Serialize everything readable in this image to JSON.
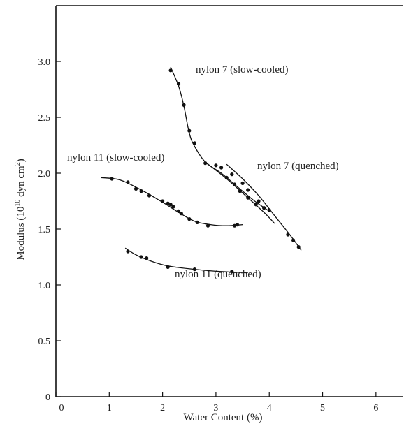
{
  "chart_data": {
    "type": "scatter",
    "xlabel": "Water Content (%)",
    "ylabel": "Modulus (10¹⁰ dyn cm²)",
    "ylabel_parts": {
      "main": "Modulus  (10",
      "exp": "10",
      "unit": " dyn   cm",
      "unit_exp": "2",
      "close": ")"
    },
    "xlim": [
      0,
      6.5
    ],
    "ylim": [
      0,
      3.5
    ],
    "xticks": [
      "0",
      "1",
      "2",
      "3",
      "4",
      "5",
      "6"
    ],
    "yticks": [
      "0",
      "0.5",
      "1.0",
      "1.5",
      "2.0",
      "2.5",
      "3.0"
    ],
    "grid": false,
    "series": [
      {
        "name": "nylon 7 (slow-cooled)",
        "points": [
          [
            2.15,
            2.92
          ],
          [
            2.3,
            2.8
          ],
          [
            2.4,
            2.61
          ],
          [
            2.5,
            2.38
          ],
          [
            2.6,
            2.27
          ],
          [
            2.8,
            2.09
          ],
          [
            3.0,
            2.07
          ],
          [
            3.1,
            2.05
          ],
          [
            3.3,
            1.99
          ],
          [
            3.5,
            1.91
          ],
          [
            3.6,
            1.85
          ],
          [
            3.8,
            1.75
          ],
          [
            4.0,
            1.67
          ]
        ],
        "curve": [
          [
            2.15,
            2.95
          ],
          [
            2.3,
            2.78
          ],
          [
            2.4,
            2.6
          ],
          [
            2.5,
            2.36
          ],
          [
            2.6,
            2.24
          ],
          [
            2.8,
            2.1
          ],
          [
            3.1,
            2.0
          ],
          [
            3.4,
            1.88
          ],
          [
            3.7,
            1.76
          ],
          [
            4.0,
            1.66
          ]
        ]
      },
      {
        "name": "nylon 7 (quenched)",
        "points": [
          [
            3.2,
            1.96
          ],
          [
            3.35,
            1.9
          ],
          [
            3.45,
            1.84
          ],
          [
            3.6,
            1.78
          ],
          [
            3.75,
            1.72
          ],
          [
            3.9,
            1.69
          ],
          [
            4.35,
            1.45
          ],
          [
            4.45,
            1.4
          ],
          [
            4.55,
            1.34
          ]
        ],
        "curve": [
          [
            2.8,
            2.1
          ],
          [
            3.2,
            1.95
          ],
          [
            3.6,
            1.78
          ],
          [
            3.9,
            1.65
          ],
          [
            4.1,
            1.55
          ]
        ],
        "curve2": [
          [
            3.2,
            2.08
          ],
          [
            3.5,
            1.95
          ],
          [
            3.8,
            1.8
          ],
          [
            4.1,
            1.62
          ],
          [
            4.4,
            1.44
          ],
          [
            4.6,
            1.31
          ]
        ]
      },
      {
        "name": "nylon 11 (slow-cooled)",
        "points": [
          [
            1.05,
            1.95
          ],
          [
            1.35,
            1.92
          ],
          [
            1.5,
            1.86
          ],
          [
            1.6,
            1.84
          ],
          [
            1.75,
            1.8
          ],
          [
            2.0,
            1.75
          ],
          [
            2.1,
            1.73
          ],
          [
            2.15,
            1.72
          ],
          [
            2.2,
            1.7
          ],
          [
            2.3,
            1.66
          ],
          [
            2.35,
            1.64
          ],
          [
            2.5,
            1.59
          ],
          [
            2.65,
            1.56
          ],
          [
            2.85,
            1.53
          ],
          [
            3.35,
            1.53
          ],
          [
            3.4,
            1.54
          ]
        ],
        "curve": [
          [
            0.85,
            1.96
          ],
          [
            1.2,
            1.94
          ],
          [
            1.6,
            1.85
          ],
          [
            2.0,
            1.74
          ],
          [
            2.3,
            1.65
          ],
          [
            2.6,
            1.57
          ],
          [
            2.9,
            1.54
          ],
          [
            3.2,
            1.53
          ],
          [
            3.5,
            1.54
          ]
        ]
      },
      {
        "name": "nylon 11 (quenched)",
        "points": [
          [
            1.35,
            1.3
          ],
          [
            1.6,
            1.25
          ],
          [
            1.7,
            1.24
          ],
          [
            2.1,
            1.16
          ],
          [
            2.6,
            1.14
          ],
          [
            3.3,
            1.12
          ]
        ],
        "curve": [
          [
            1.3,
            1.33
          ],
          [
            1.5,
            1.27
          ],
          [
            1.8,
            1.21
          ],
          [
            2.1,
            1.17
          ],
          [
            2.6,
            1.14
          ],
          [
            3.1,
            1.12
          ],
          [
            3.6,
            1.11
          ]
        ]
      }
    ]
  }
}
